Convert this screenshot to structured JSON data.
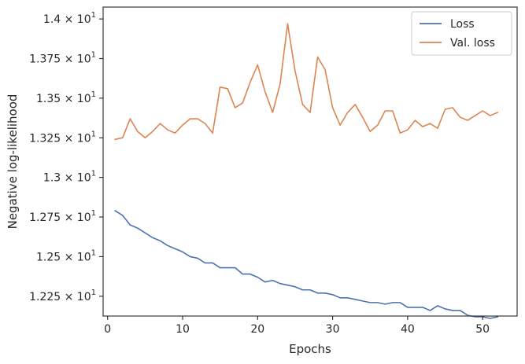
{
  "chart_data": {
    "type": "line",
    "xlabel": "Epochs",
    "ylabel": "Negative log-likelihood",
    "xlim": [
      -0.6,
      54.6
    ],
    "ylim": [
      12.125,
      14.075
    ],
    "x_ticks": [
      0,
      10,
      20,
      30,
      40,
      50
    ],
    "x_tick_labels": [
      "0",
      "10",
      "20",
      "30",
      "40",
      "50"
    ],
    "y_ticks": [
      12.25,
      12.5,
      12.75,
      13.0,
      13.25,
      13.5,
      13.75,
      14.0
    ],
    "y_tick_labels": [
      {
        "mant": "1.225",
        "base": "10",
        "exp": "1"
      },
      {
        "mant": "1.25",
        "base": "10",
        "exp": "1"
      },
      {
        "mant": "1.275",
        "base": "10",
        "exp": "1"
      },
      {
        "mant": "1.3",
        "base": "10",
        "exp": "1"
      },
      {
        "mant": "1.325",
        "base": "10",
        "exp": "1"
      },
      {
        "mant": "1.35",
        "base": "10",
        "exp": "1"
      },
      {
        "mant": "1.375",
        "base": "10",
        "exp": "1"
      },
      {
        "mant": "1.4",
        "base": "10",
        "exp": "1"
      }
    ],
    "grid": false,
    "legend_position": "top-right",
    "x": [
      1,
      2,
      3,
      4,
      5,
      6,
      7,
      8,
      9,
      10,
      11,
      12,
      13,
      14,
      15,
      16,
      17,
      18,
      19,
      20,
      21,
      22,
      23,
      24,
      25,
      26,
      27,
      28,
      29,
      30,
      31,
      32,
      33,
      34,
      35,
      36,
      37,
      38,
      39,
      40,
      41,
      42,
      43,
      44,
      45,
      46,
      47,
      48,
      49,
      50,
      51,
      52
    ],
    "series": [
      {
        "name": "Loss",
        "color": "#4c72b0",
        "values": [
          12.79,
          12.76,
          12.7,
          12.68,
          12.65,
          12.62,
          12.6,
          12.57,
          12.55,
          12.53,
          12.5,
          12.49,
          12.46,
          12.46,
          12.43,
          12.43,
          12.43,
          12.39,
          12.39,
          12.37,
          12.34,
          12.35,
          12.33,
          12.32,
          12.31,
          12.29,
          12.29,
          12.27,
          12.27,
          12.26,
          12.24,
          12.24,
          12.23,
          12.22,
          12.21,
          12.21,
          12.2,
          12.21,
          12.21,
          12.18,
          12.18,
          12.18,
          12.16,
          12.19,
          12.17,
          12.16,
          12.16,
          12.13,
          12.12,
          12.12,
          12.11,
          12.12
        ]
      },
      {
        "name": "Val. loss",
        "color": "#dd8452",
        "values": [
          13.24,
          13.25,
          13.37,
          13.29,
          13.25,
          13.29,
          13.34,
          13.3,
          13.28,
          13.33,
          13.37,
          13.37,
          13.34,
          13.28,
          13.57,
          13.56,
          13.44,
          13.47,
          13.6,
          13.71,
          13.54,
          13.41,
          13.59,
          13.97,
          13.67,
          13.46,
          13.41,
          13.76,
          13.68,
          13.44,
          13.33,
          13.41,
          13.46,
          13.38,
          13.29,
          13.33,
          13.42,
          13.42,
          13.28,
          13.3,
          13.36,
          13.32,
          13.34,
          13.31,
          13.43,
          13.44,
          13.38,
          13.36,
          13.39,
          13.42,
          13.39,
          13.41
        ]
      }
    ]
  }
}
